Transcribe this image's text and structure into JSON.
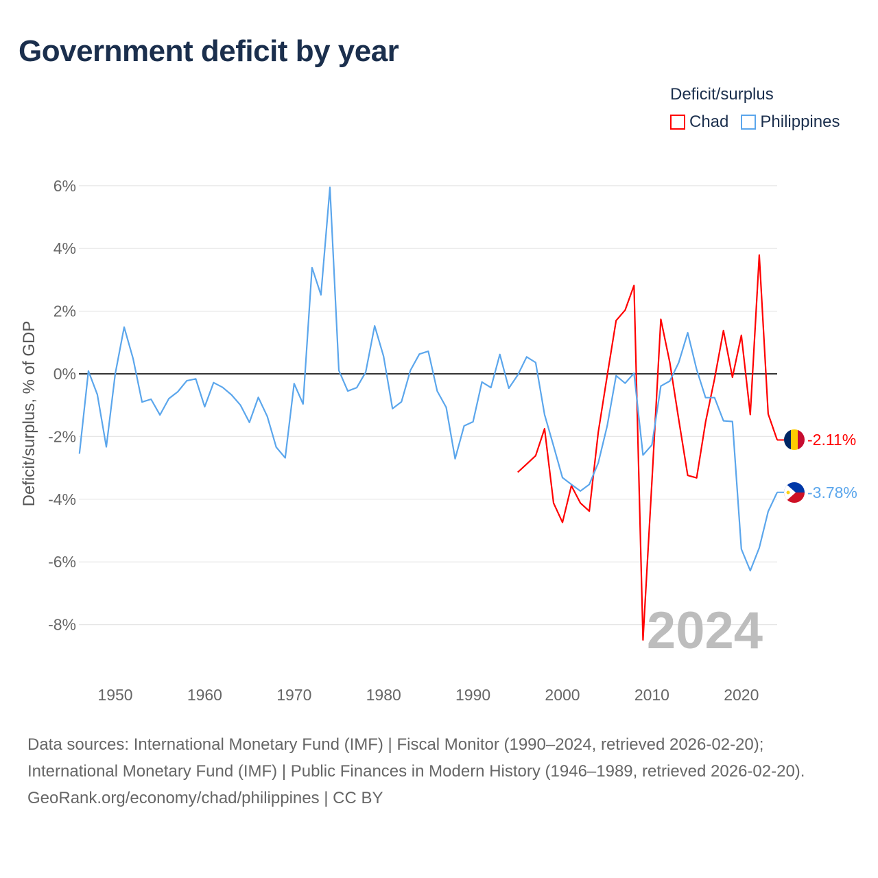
{
  "title": "Government deficit by year",
  "legend": {
    "title": "Deficit/surplus",
    "items": [
      {
        "label": "Chad",
        "color": "#ff0000"
      },
      {
        "label": "Philippines",
        "color": "#5ba6ec"
      }
    ]
  },
  "chart_data": {
    "type": "line",
    "title": "Government deficit by year",
    "xlabel": "",
    "ylabel": "Deficit/surplus, % of GDP",
    "xlim": [
      1946,
      2024
    ],
    "ylim": [
      -9,
      6
    ],
    "x_ticks": [
      1950,
      1960,
      1970,
      1980,
      1990,
      2000,
      2010,
      2020
    ],
    "x_tick_labels": [
      "1950",
      "1960",
      "1970",
      "1980",
      "1990",
      "2000",
      "2010",
      "2020"
    ],
    "y_ticks": [
      6,
      4,
      2,
      0,
      -2,
      -4,
      -6,
      -8
    ],
    "y_tick_labels": [
      "6%",
      "4%",
      "2%",
      "0%",
      "-2%",
      "-4%",
      "-6%",
      "-8%"
    ],
    "grid": true,
    "legend_position": "top-right",
    "year_watermark": "2024",
    "series": [
      {
        "name": "Chad",
        "color": "#ff0000",
        "end_label": "-2.11%",
        "x": [
          1995,
          1996,
          1997,
          1998,
          1999,
          2000,
          2001,
          2002,
          2003,
          2004,
          2005,
          2006,
          2007,
          2008,
          2009,
          2010,
          2011,
          2012,
          2013,
          2014,
          2015,
          2016,
          2017,
          2018,
          2019,
          2020,
          2021,
          2022,
          2023,
          2024
        ],
        "values": [
          -3.14,
          -2.88,
          -2.61,
          -1.75,
          -4.12,
          -4.74,
          -3.57,
          -4.12,
          -4.38,
          -1.86,
          -0.06,
          1.7,
          2.03,
          2.82,
          -8.49,
          -3.44,
          1.74,
          0.36,
          -1.46,
          -3.24,
          -3.32,
          -1.54,
          -0.16,
          1.38,
          -0.11,
          1.23,
          -1.3,
          3.79,
          -1.28,
          -2.11
        ]
      },
      {
        "name": "Philippines",
        "color": "#5ba6ec",
        "end_label": "-3.78%",
        "x": [
          1946,
          1947,
          1948,
          1949,
          1950,
          1951,
          1952,
          1953,
          1954,
          1955,
          1956,
          1957,
          1958,
          1959,
          1960,
          1961,
          1962,
          1963,
          1964,
          1965,
          1966,
          1967,
          1968,
          1969,
          1970,
          1971,
          1972,
          1973,
          1974,
          1975,
          1976,
          1977,
          1978,
          1979,
          1980,
          1981,
          1982,
          1983,
          1984,
          1985,
          1986,
          1987,
          1988,
          1989,
          1990,
          1991,
          1992,
          1993,
          1994,
          1995,
          1996,
          1997,
          1998,
          1999,
          2000,
          2001,
          2002,
          2003,
          2004,
          2005,
          2006,
          2007,
          2008,
          2009,
          2010,
          2011,
          2012,
          2013,
          2014,
          2015,
          2016,
          2017,
          2018,
          2019,
          2020,
          2021,
          2022,
          2023,
          2024
        ],
        "values": [
          -2.55,
          0.09,
          -0.66,
          -2.33,
          0.0,
          1.49,
          0.48,
          -0.9,
          -0.81,
          -1.31,
          -0.79,
          -0.57,
          -0.22,
          -0.16,
          -1.05,
          -0.28,
          -0.43,
          -0.67,
          -1.0,
          -1.55,
          -0.75,
          -1.36,
          -2.34,
          -2.68,
          -0.31,
          -0.96,
          3.39,
          2.52,
          5.95,
          0.11,
          -0.55,
          -0.44,
          0.05,
          1.53,
          0.56,
          -1.11,
          -0.89,
          0.11,
          0.63,
          0.72,
          -0.55,
          -1.07,
          -2.71,
          -1.66,
          -1.53,
          -0.26,
          -0.44,
          0.62,
          -0.46,
          -0.04,
          0.54,
          0.36,
          -1.3,
          -2.3,
          -3.31,
          -3.53,
          -3.74,
          -3.53,
          -2.84,
          -1.66,
          -0.06,
          -0.3,
          0.02,
          -2.59,
          -2.27,
          -0.39,
          -0.23,
          0.36,
          1.31,
          0.14,
          -0.76,
          -0.76,
          -1.5,
          -1.52,
          -5.59,
          -6.28,
          -5.55,
          -4.39,
          -3.78
        ]
      }
    ]
  },
  "footer": {
    "sources": "Data sources: International Monetary Fund (IMF) | Fiscal Monitor (1990–2024, retrieved 2026-02-20); International Monetary Fund (IMF) | Public Finances in Modern History (1946–1989, retrieved 2026-02-20).",
    "credit": "GeoRank.org/economy/chad/philippines | CC BY"
  }
}
